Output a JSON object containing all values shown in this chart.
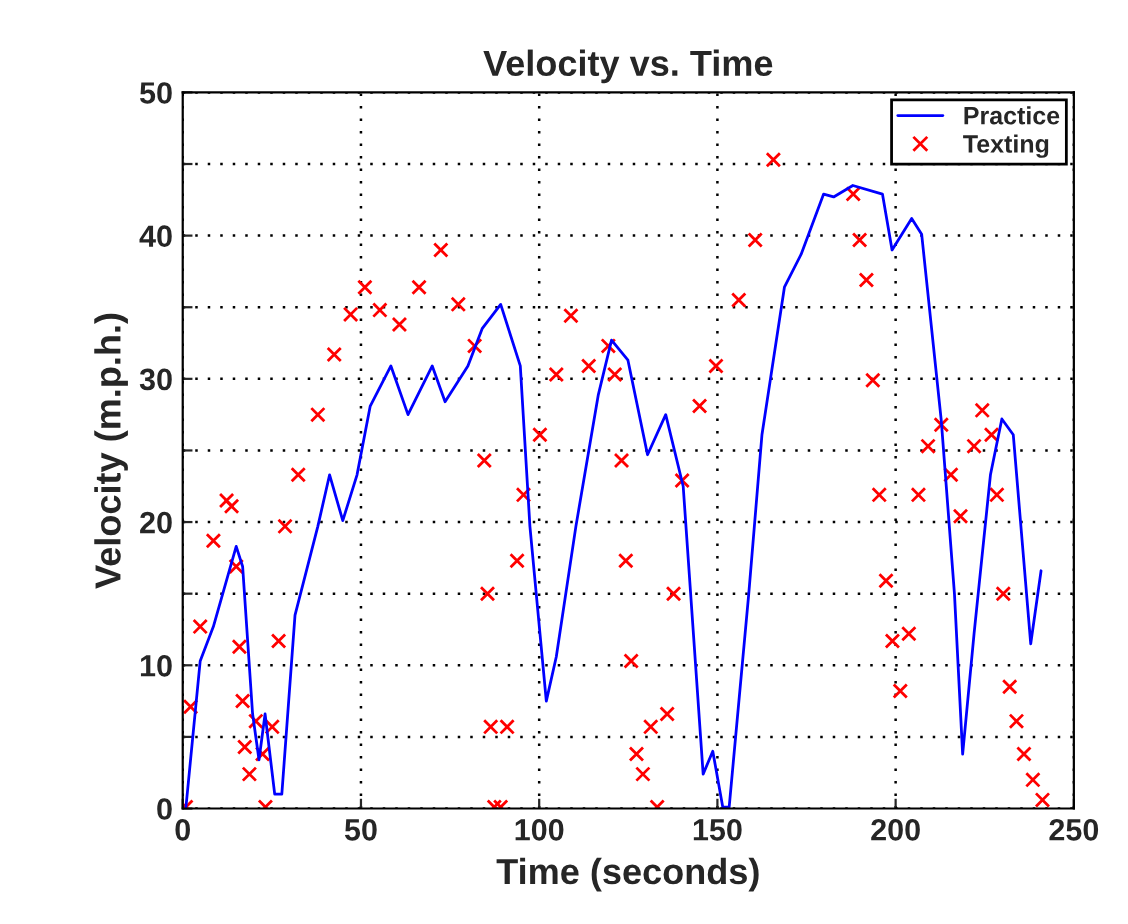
{
  "chart_data": {
    "type": "line",
    "title": "Velocity vs. Time",
    "xlabel": "Time (seconds)",
    "ylabel": "Velocity (m.p.h.)",
    "xlim": [
      0,
      250
    ],
    "xticks": [
      0,
      50,
      100,
      150,
      200,
      250
    ],
    "ylim": [
      0,
      50
    ],
    "yticks": [
      0,
      {
        "value": 5,
        "label": null
      },
      10,
      {
        "value": 15,
        "label": null
      },
      20,
      {
        "value": 25,
        "label": null
      },
      30,
      {
        "value": 35,
        "label": null
      },
      40,
      {
        "value": 45,
        "label": null
      },
      50
    ],
    "grid": true,
    "legend": "top right",
    "series": [
      {
        "name": "Practice",
        "color": "#0000ff",
        "marker": "none",
        "line_style": "solid",
        "x": [
          0.9,
          4.9,
          8.6,
          15,
          16.8,
          19.6,
          21.4,
          23.1,
          25.8,
          27.8,
          31.5,
          37.9,
          41.2,
          44.9,
          48.9,
          52.6,
          58.4,
          63.2,
          70,
          73.6,
          80,
          84,
          89.2,
          94.7,
          97.4,
          102,
          104.8,
          110.3,
          116.6,
          120.3,
          124.9,
          130.4,
          135.5,
          140.4,
          146,
          148.7,
          151.5,
          153.3,
          158.8,
          162.5,
          168.8,
          173.5,
          179.8,
          182.6,
          188,
          196.3,
          199,
          204.5,
          207.3,
          212.8,
          216.5,
          218.8,
          222,
          226.6,
          229.8,
          233,
          237.9,
          240.8
        ],
        "values": [
          0.1,
          10.3,
          12.7,
          18.3,
          16.9,
          6.6,
          3.4,
          6.6,
          1,
          1,
          13.5,
          19.7,
          23.3,
          20.1,
          23.3,
          28.1,
          30.9,
          27.5,
          30.9,
          28.4,
          30.9,
          33.5,
          35.2,
          30.9,
          19.7,
          7.5,
          10.6,
          19.7,
          28.9,
          32.7,
          31.3,
          24.7,
          27.5,
          22.5,
          2.4,
          4,
          0.1,
          0.1,
          15,
          26.1,
          36.4,
          38.7,
          42.9,
          42.7,
          43.5,
          42.9,
          39,
          41.2,
          40.1,
          27.1,
          15,
          3.8,
          12.2,
          23.3,
          27.2,
          26.1,
          11.5,
          16.6
        ]
      },
      {
        "name": "Texting",
        "type": "scatter",
        "color": "#ff0000",
        "marker": "cross",
        "x": [
          0.9,
          2.2,
          4.9,
          8.6,
          12.3,
          13.7,
          15,
          15.9,
          16.8,
          17.4,
          18.7,
          20.5,
          22.4,
          23.2,
          25.1,
          26.9,
          28.7,
          32.4,
          37.9,
          42.5,
          47.1,
          51.1,
          55.3,
          60.8,
          66.3,
          72.4,
          77.3,
          81.9,
          84.6,
          85.5,
          86.4,
          87.4,
          89.2,
          91,
          93.8,
          95.6,
          100.2,
          104.8,
          108.9,
          113.9,
          119.4,
          121.2,
          123.1,
          124.3,
          125.8,
          127.3,
          129.1,
          131.3,
          133.1,
          135.9,
          137.7,
          140.1,
          145,
          149.6,
          156,
          160.6,
          165.7,
          176,
          188.1,
          189.9,
          191.8,
          193.6,
          195.4,
          197.3,
          199.1,
          201.3,
          203.7,
          206.4,
          209.1,
          212.8,
          215.5,
          218.2,
          222,
          224.3,
          226.9,
          228.4,
          230.2,
          232,
          233.9,
          236,
          238.5,
          241.2
        ],
        "values": [
          0.1,
          7.1,
          12.7,
          18.7,
          21.5,
          21.1,
          16.9,
          11.3,
          7.5,
          4.3,
          2.4,
          6.1,
          3.8,
          0.1,
          5.7,
          11.7,
          19.7,
          23.3,
          27.5,
          31.7,
          34.5,
          36.4,
          34.8,
          33.8,
          36.4,
          39,
          35.2,
          32.3,
          24.3,
          15,
          5.7,
          0.1,
          0.1,
          5.7,
          17.3,
          21.9,
          26.1,
          30.3,
          34.4,
          30.9,
          32.3,
          30.3,
          24.3,
          17.3,
          10.3,
          3.8,
          2.4,
          5.7,
          0.1,
          6.6,
          15,
          22.9,
          28.1,
          30.9,
          35.5,
          39.7,
          45.3,
          null,
          42.9,
          39.7,
          36.9,
          29.9,
          21.9,
          15.9,
          11.7,
          8.2,
          12.2,
          21.9,
          25.3,
          26.8,
          23.3,
          20.4,
          25.3,
          27.8,
          26.1,
          21.9,
          15,
          8.5,
          6.1,
          3.8,
          2,
          0.6
        ]
      }
    ]
  }
}
